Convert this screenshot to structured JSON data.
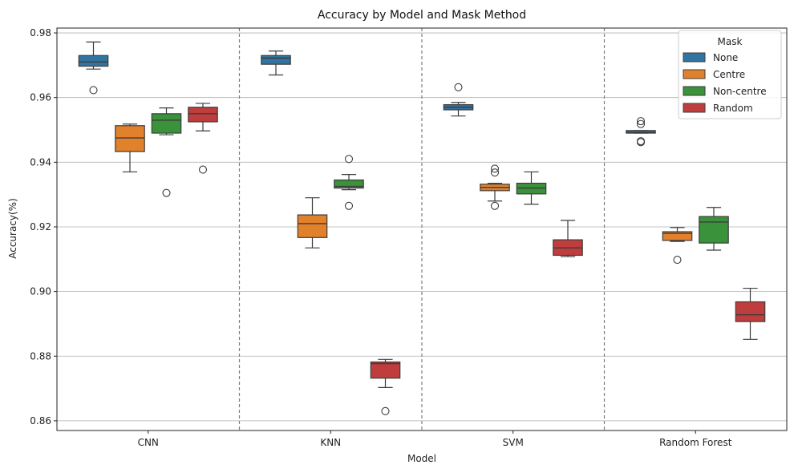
{
  "chart_data": {
    "type": "box",
    "title": "Accuracy by Model and Mask Method",
    "xlabel": "Model",
    "ylabel": "Accuracy(%)",
    "ylim": [
      0.857,
      0.9815
    ],
    "yticks": [
      0.86,
      0.88,
      0.9,
      0.92,
      0.94,
      0.96,
      0.98
    ],
    "ytick_labels": [
      "0.86",
      "0.88",
      "0.90",
      "0.92",
      "0.94",
      "0.96",
      "0.98"
    ],
    "grid": "y",
    "group_separators": "dashed",
    "categories": [
      "CNN",
      "KNN",
      "SVM",
      "Random Forest"
    ],
    "legend": {
      "title": "Mask",
      "placement": "top-right"
    },
    "series": [
      {
        "name": "None",
        "color": "#3274a1",
        "boxes": [
          {
            "whislo": 0.9688,
            "q1": 0.9697,
            "med": 0.971,
            "q3": 0.973,
            "whishi": 0.9772,
            "fliers": [
              0.9623
            ]
          },
          {
            "whislo": 0.967,
            "q1": 0.9703,
            "med": 0.9722,
            "q3": 0.973,
            "whishi": 0.9744,
            "fliers": []
          },
          {
            "whislo": 0.9543,
            "q1": 0.9562,
            "med": 0.957,
            "q3": 0.9578,
            "whishi": 0.9585,
            "fliers": [
              0.9632
            ]
          },
          {
            "whislo": 0.949,
            "q1": 0.949,
            "med": 0.9492,
            "q3": 0.9498,
            "whishi": 0.9498,
            "fliers": [
              0.9462,
              0.9465,
              0.9518,
              0.9527
            ]
          }
        ]
      },
      {
        "name": "Centre",
        "color": "#e1812c",
        "boxes": [
          {
            "whislo": 0.937,
            "q1": 0.9433,
            "med": 0.9475,
            "q3": 0.9513,
            "whishi": 0.9518,
            "fliers": []
          },
          {
            "whislo": 0.9135,
            "q1": 0.9167,
            "med": 0.921,
            "q3": 0.9237,
            "whishi": 0.929,
            "fliers": []
          },
          {
            "whislo": 0.928,
            "q1": 0.9312,
            "med": 0.9322,
            "q3": 0.9332,
            "whishi": 0.9335,
            "fliers": [
              0.9265,
              0.9368,
              0.938
            ]
          },
          {
            "whislo": 0.9155,
            "q1": 0.9158,
            "med": 0.918,
            "q3": 0.9185,
            "whishi": 0.9198,
            "fliers": [
              0.9098
            ]
          }
        ]
      },
      {
        "name": "Non-centre",
        "color": "#3a923a",
        "boxes": [
          {
            "whislo": 0.9485,
            "q1": 0.949,
            "med": 0.953,
            "q3": 0.955,
            "whishi": 0.9568,
            "fliers": [
              0.9305
            ]
          },
          {
            "whislo": 0.9315,
            "q1": 0.932,
            "med": 0.9325,
            "q3": 0.9345,
            "whishi": 0.9362,
            "fliers": [
              0.9265,
              0.941
            ]
          },
          {
            "whislo": 0.927,
            "q1": 0.9302,
            "med": 0.932,
            "q3": 0.9335,
            "whishi": 0.937,
            "fliers": []
          },
          {
            "whislo": 0.9128,
            "q1": 0.915,
            "med": 0.9215,
            "q3": 0.9232,
            "whishi": 0.926,
            "fliers": []
          }
        ]
      },
      {
        "name": "Random",
        "color": "#c03d3e",
        "boxes": [
          {
            "whislo": 0.9497,
            "q1": 0.9525,
            "med": 0.955,
            "q3": 0.957,
            "whishi": 0.9582,
            "fliers": [
              0.9377
            ]
          },
          {
            "whislo": 0.8703,
            "q1": 0.8732,
            "med": 0.8777,
            "q3": 0.8782,
            "whishi": 0.879,
            "fliers": [
              0.863
            ]
          },
          {
            "whislo": 0.9108,
            "q1": 0.9112,
            "med": 0.9135,
            "q3": 0.916,
            "whishi": 0.922,
            "fliers": []
          },
          {
            "whislo": 0.8852,
            "q1": 0.8907,
            "med": 0.8928,
            "q3": 0.8968,
            "whishi": 0.901,
            "fliers": []
          }
        ]
      }
    ]
  }
}
